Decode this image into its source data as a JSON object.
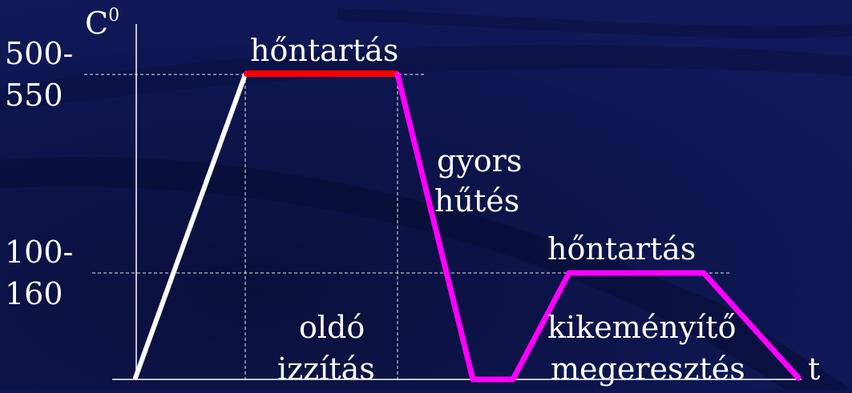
{
  "axes": {
    "y_label": "C",
    "y_label_sup": "0",
    "x_label": "t"
  },
  "levels": {
    "high": {
      "line1": "500-",
      "line2": "550"
    },
    "low": {
      "line1": "100-",
      "line2": "160"
    }
  },
  "labels": {
    "hold_high": "hőntartás",
    "quench_line1": "gyors",
    "quench_line2": "hűtés",
    "hold_low": "hőntartás",
    "solution_line1": "oldó",
    "solution_line2": "izzítás",
    "aging_line1": "kikeményítő",
    "aging_line2": "megeresztés"
  },
  "colors": {
    "background": "#0d1650",
    "heating": "#ffffff",
    "hold_high": "#ff0000",
    "process": "#ff00ff",
    "guide": "#ffffff",
    "text": "#ffffff"
  }
}
